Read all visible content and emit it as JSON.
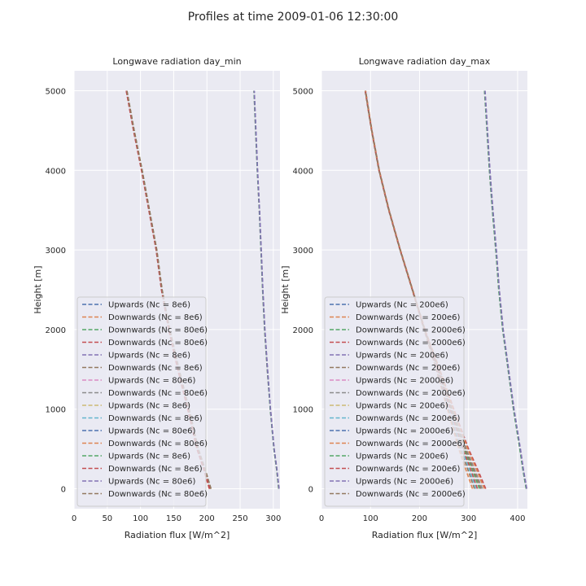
{
  "figure": {
    "suptitle": "Profiles at time 2009-01-06 12:30:00"
  },
  "chart_data": [
    {
      "type": "line",
      "title": "Longwave radiation day_min",
      "xlabel": "Radiation flux [W/m^2]",
      "ylabel": "Height [m]",
      "xlim": [
        0,
        310
      ],
      "ylim": [
        -250,
        5250
      ],
      "xticks": [
        0,
        50,
        100,
        150,
        200,
        250,
        300
      ],
      "yticks": [
        0,
        1000,
        2000,
        3000,
        4000,
        5000
      ],
      "grid": true,
      "legend_location": "lower left",
      "heights": [
        0,
        250,
        500,
        1000,
        1500,
        2000,
        2500,
        3000,
        3500,
        4000,
        4500,
        5000
      ],
      "series": [
        {
          "name": "Upwards (Nc = 8e6)",
          "color": "#4c72b0",
          "values": [
            308.3,
            305.0,
            301.0,
            295.5,
            291.0,
            287.0,
            284.0,
            281.5,
            279.0,
            276.0,
            273.5,
            271.0
          ]
        },
        {
          "name": "Downwards (Nc = 8e6)",
          "color": "#dd8452",
          "values": [
            205.0,
            196.0,
            186.0,
            172.0,
            157.0,
            143.0,
            132.0,
            124.0,
            113.0,
            102.0,
            90.0,
            79.0
          ]
        },
        {
          "name": "Downwards (Nc = 80e6)",
          "color": "#55a868",
          "values": [
            206.0,
            197.0,
            187.0,
            173.0,
            158.0,
            144.0,
            132.5,
            124.5,
            113.5,
            102.5,
            90.5,
            79.5
          ]
        },
        {
          "name": "Downwards (Nc = 80e6)",
          "color": "#c44e52",
          "values": [
            203.5,
            195.0,
            185.0,
            171.0,
            156.0,
            142.5,
            131.5,
            123.5,
            112.5,
            101.5,
            89.5,
            78.5
          ]
        },
        {
          "name": "Upwards (Nc = 8e6)",
          "color": "#8172b3",
          "values": [
            308.0,
            304.8,
            300.8,
            295.3,
            290.8,
            286.8,
            283.8,
            281.3,
            278.8,
            275.8,
            273.3,
            270.8
          ]
        },
        {
          "name": "Downwards (Nc = 8e6)",
          "color": "#937860",
          "values": [
            204.5,
            195.5,
            185.5,
            171.5,
            156.5,
            143.0,
            131.8,
            123.8,
            112.8,
            101.8,
            89.8,
            78.8
          ]
        },
        {
          "name": "Upwards (Nc = 80e6)",
          "color": "#da8bc3",
          "values": [
            308.5,
            305.2,
            301.2,
            295.7,
            291.2,
            287.2,
            284.2,
            281.7,
            279.2,
            276.2,
            273.7,
            271.2
          ]
        },
        {
          "name": "Downwards (Nc = 80e6)",
          "color": "#8c8c8c",
          "values": [
            205.5,
            196.5,
            186.5,
            172.5,
            157.5,
            143.5,
            132.2,
            124.2,
            113.2,
            102.2,
            90.2,
            79.2
          ]
        },
        {
          "name": "Upwards (Nc = 8e6)",
          "color": "#ccb974",
          "values": [
            308.1,
            304.9,
            300.9,
            295.4,
            290.9,
            286.9,
            283.9,
            281.4,
            278.9,
            275.9,
            273.4,
            270.9
          ]
        },
        {
          "name": "Downwards (Nc = 8e6)",
          "color": "#64b5cd",
          "values": [
            204.8,
            195.8,
            185.8,
            171.8,
            156.8,
            142.8,
            131.9,
            123.9,
            112.9,
            101.9,
            89.9,
            78.9
          ]
        },
        {
          "name": "Upwards (Nc = 80e6)",
          "color": "#4c72b0",
          "values": [
            308.4,
            305.1,
            301.1,
            295.6,
            291.1,
            287.1,
            284.1,
            281.6,
            279.1,
            276.1,
            273.6,
            271.1
          ]
        },
        {
          "name": "Downwards (Nc = 80e6)",
          "color": "#dd8452",
          "values": [
            205.8,
            196.8,
            186.8,
            172.8,
            157.8,
            143.8,
            132.4,
            124.4,
            113.4,
            102.4,
            90.4,
            79.4
          ]
        },
        {
          "name": "Upwards (Nc = 8e6)",
          "color": "#55a868",
          "values": [
            308.2,
            304.95,
            300.95,
            295.45,
            290.95,
            286.95,
            283.95,
            281.45,
            278.95,
            275.95,
            273.45,
            270.95
          ]
        },
        {
          "name": "Downwards (Nc = 8e6)",
          "color": "#c44e52",
          "values": [
            204.2,
            195.2,
            185.2,
            171.2,
            156.2,
            142.7,
            131.7,
            123.7,
            112.7,
            101.7,
            89.7,
            78.7
          ]
        },
        {
          "name": "Upwards (Nc = 80e6)",
          "color": "#8172b3",
          "values": [
            308.6,
            305.3,
            301.3,
            295.8,
            291.3,
            287.3,
            284.3,
            281.8,
            279.3,
            276.3,
            273.8,
            271.3
          ]
        },
        {
          "name": "Downwards (Nc = 80e6)",
          "color": "#937860",
          "values": [
            206.2,
            197.2,
            187.2,
            173.2,
            158.2,
            144.2,
            132.6,
            124.6,
            113.6,
            102.6,
            90.6,
            79.6
          ]
        }
      ]
    },
    {
      "type": "line",
      "title": "Longwave radiation day_max",
      "xlabel": "Radiation flux [W/m^2]",
      "ylabel": "Height [m]",
      "xlim": [
        0,
        420
      ],
      "ylim": [
        -250,
        5250
      ],
      "xticks": [
        0,
        100,
        200,
        300,
        400
      ],
      "yticks": [
        0,
        1000,
        2000,
        3000,
        4000,
        5000
      ],
      "grid": true,
      "legend_location": "lower left",
      "heights": [
        0,
        250,
        500,
        1000,
        1500,
        2000,
        2500,
        3000,
        3500,
        4000,
        4500,
        5000
      ],
      "series": [
        {
          "name": "Upwards (Nc = 200e6)",
          "color": "#4c72b0",
          "values": [
            418.0,
            411.0,
            405.0,
            392.0,
            381.0,
            370.0,
            362.0,
            356.0,
            349.0,
            343.0,
            338.0,
            333.0
          ]
        },
        {
          "name": "Downwards (Nc = 200e6)",
          "color": "#dd8452",
          "values": [
            308.0,
            294.0,
            280.0,
            257.0,
            234.0,
            209.0,
            185.0,
            160.0,
            137.0,
            117.0,
            102.0,
            89.0
          ]
        },
        {
          "name": "Downwards (Nc = 2000e6)",
          "color": "#55a868",
          "values": [
            322.0,
            307.0,
            291.0,
            264.0,
            238.0,
            210.0,
            185.5,
            160.5,
            137.5,
            117.5,
            102.5,
            89.5
          ]
        },
        {
          "name": "Downwards (Nc = 2000e6)",
          "color": "#c44e52",
          "values": [
            335.0,
            318.0,
            300.0,
            270.0,
            241.0,
            211.0,
            186.0,
            161.0,
            138.0,
            118.0,
            103.0,
            90.0
          ]
        },
        {
          "name": "Upwards (Nc = 200e6)",
          "color": "#8172b3",
          "values": [
            417.5,
            410.5,
            404.5,
            391.5,
            380.5,
            369.5,
            361.5,
            355.5,
            348.5,
            342.5,
            337.5,
            332.5
          ]
        },
        {
          "name": "Downwards (Nc = 200e6)",
          "color": "#937860",
          "values": [
            312.0,
            298.0,
            283.0,
            259.0,
            235.0,
            209.5,
            185.2,
            160.2,
            137.2,
            117.2,
            102.2,
            89.2
          ]
        },
        {
          "name": "Upwards (Nc = 2000e6)",
          "color": "#da8bc3",
          "values": [
            418.5,
            411.5,
            405.5,
            392.5,
            381.5,
            370.5,
            362.5,
            356.5,
            349.5,
            343.5,
            338.5,
            333.5
          ]
        },
        {
          "name": "Downwards (Nc = 2000e6)",
          "color": "#8c8c8c",
          "values": [
            328.0,
            312.0,
            295.0,
            267.0,
            239.5,
            210.5,
            185.8,
            160.8,
            137.8,
            117.8,
            102.8,
            89.8
          ]
        },
        {
          "name": "Upwards (Nc = 200e6)",
          "color": "#ccb974",
          "values": [
            417.8,
            410.8,
            404.8,
            391.8,
            380.8,
            369.8,
            361.8,
            355.8,
            348.8,
            342.8,
            337.8,
            332.8
          ]
        },
        {
          "name": "Downwards (Nc = 200e6)",
          "color": "#64b5cd",
          "values": [
            315.0,
            301.0,
            286.0,
            261.0,
            236.5,
            209.8,
            185.4,
            160.4,
            137.4,
            117.4,
            102.4,
            89.4
          ]
        },
        {
          "name": "Upwards (Nc = 2000e6)",
          "color": "#4c72b0",
          "values": [
            418.2,
            411.2,
            405.2,
            392.2,
            381.2,
            370.2,
            362.2,
            356.2,
            349.2,
            343.2,
            338.2,
            333.2
          ]
        },
        {
          "name": "Downwards (Nc = 2000e6)",
          "color": "#dd8452",
          "values": [
            332.0,
            315.5,
            298.0,
            269.0,
            240.5,
            210.8,
            185.9,
            160.9,
            137.9,
            117.9,
            102.9,
            89.9
          ]
        },
        {
          "name": "Upwards (Nc = 200e6)",
          "color": "#55a868",
          "values": [
            417.6,
            410.6,
            404.6,
            391.6,
            380.6,
            369.6,
            361.6,
            355.6,
            348.6,
            342.6,
            337.6,
            332.6
          ]
        },
        {
          "name": "Downwards (Nc = 200e6)",
          "color": "#c44e52",
          "values": [
            318.0,
            304.0,
            288.5,
            262.5,
            237.0,
            210.0,
            185.3,
            160.3,
            137.3,
            117.3,
            102.3,
            89.3
          ]
        },
        {
          "name": "Upwards (Nc = 2000e6)",
          "color": "#8172b3",
          "values": [
            418.7,
            411.7,
            405.7,
            392.7,
            381.7,
            370.7,
            362.7,
            356.7,
            349.7,
            343.7,
            338.7,
            333.7
          ]
        },
        {
          "name": "Downwards (Nc = 2000e6)",
          "color": "#937860",
          "values": [
            325.0,
            309.5,
            293.0,
            265.5,
            239.0,
            210.3,
            185.6,
            160.6,
            137.6,
            117.6,
            102.6,
            89.6
          ]
        }
      ]
    }
  ]
}
